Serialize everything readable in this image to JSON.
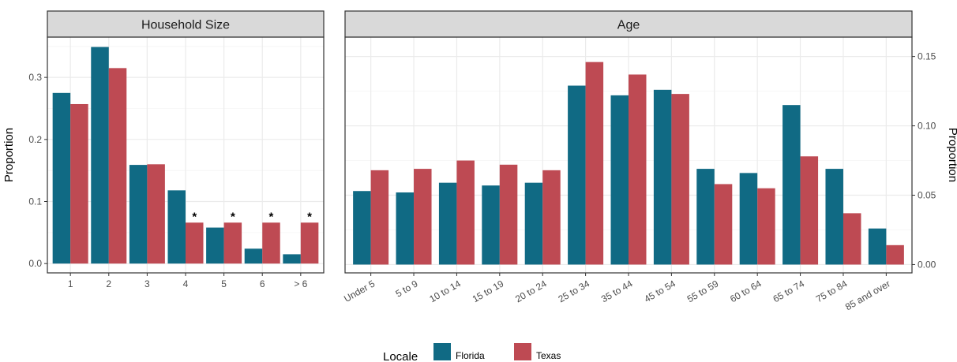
{
  "colors": {
    "florida": "#106a84",
    "texas": "#be4a53",
    "strip": "#d9d9d9",
    "grid_major": "#ebebeb",
    "grid_minor": "#f4f4f4",
    "border": "#333333"
  },
  "legend": {
    "title": "Locale",
    "items": [
      "Florida",
      "Texas"
    ]
  },
  "chart_data": [
    {
      "type": "bar",
      "title": "Household Size",
      "ylabel": "Proportion",
      "ylabel_side": "left",
      "ylim": [
        -0.015,
        0.365
      ],
      "yticks": [
        0.0,
        0.1,
        0.2,
        0.3
      ],
      "ytick_labels": [
        "0.0",
        "0.1",
        "0.2",
        "0.3"
      ],
      "categories": [
        "1",
        "2",
        "3",
        "4",
        "5",
        "6",
        "> 6"
      ],
      "series": [
        {
          "name": "Florida",
          "values": [
            0.275,
            0.349,
            0.159,
            0.118,
            0.058,
            0.024,
            0.015
          ]
        },
        {
          "name": "Texas",
          "values": [
            0.257,
            0.315,
            0.16,
            0.066,
            0.066,
            0.066,
            0.066
          ]
        }
      ],
      "annotations": [
        {
          "category": "4",
          "text": "*"
        },
        {
          "category": "5",
          "text": "*"
        },
        {
          "category": "6",
          "text": "*"
        },
        {
          "category": "> 6",
          "text": "*"
        }
      ]
    },
    {
      "type": "bar",
      "title": "Age",
      "ylabel": "Proportion",
      "ylabel_side": "right",
      "ylim": [
        -0.006,
        0.164
      ],
      "yticks": [
        0.0,
        0.05,
        0.1,
        0.15
      ],
      "ytick_labels": [
        "0.00",
        "0.05",
        "0.10",
        "0.15"
      ],
      "categories": [
        "Under 5",
        "5 to 9",
        "10 to 14",
        "15 to 19",
        "20 to 24",
        "25 to 34",
        "35 to 44",
        "45 to 54",
        "55 to 59",
        "60 to 64",
        "65 to 74",
        "75 to 84",
        "85 and over"
      ],
      "series": [
        {
          "name": "Florida",
          "values": [
            0.053,
            0.052,
            0.059,
            0.057,
            0.059,
            0.129,
            0.122,
            0.126,
            0.069,
            0.066,
            0.115,
            0.069,
            0.026
          ]
        },
        {
          "name": "Texas",
          "values": [
            0.068,
            0.069,
            0.075,
            0.072,
            0.068,
            0.146,
            0.137,
            0.123,
            0.058,
            0.055,
            0.078,
            0.037,
            0.014
          ]
        }
      ]
    }
  ]
}
